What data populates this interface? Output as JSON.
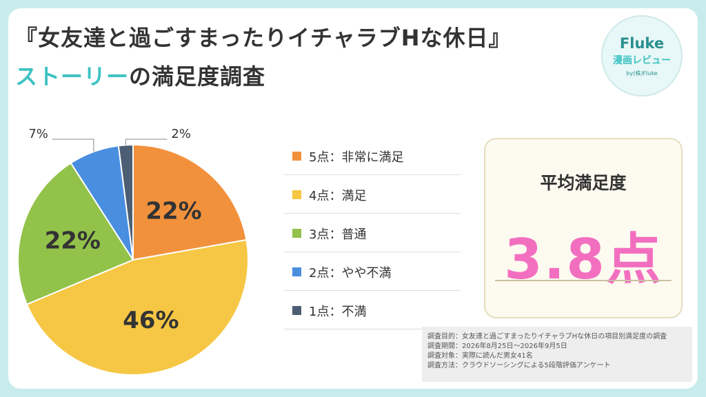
{
  "title": {
    "line1": "『女友達と過ごすまったりイチャラブHな休日』",
    "line2_highlight": "ストーリー",
    "line2_rest": "の満足度調査"
  },
  "logo": {
    "name": "Fluke",
    "subtitle": "漫画レビュー",
    "by": "by(株)Fluke"
  },
  "chart_data": {
    "type": "pie",
    "categories": [
      "5点：非常に満足",
      "4点：満足",
      "3点：普通",
      "2点：やや不満",
      "1点：不満"
    ],
    "values": [
      22,
      46,
      22,
      7,
      2
    ],
    "data_labels": [
      "22%",
      "46%",
      "22%",
      "7%",
      "2%"
    ],
    "colors": [
      "#f2913c",
      "#f6c744",
      "#92c24a",
      "#4a8ee0",
      "#4c5e73"
    ],
    "legend_placement": "right"
  },
  "average": {
    "title": "平均満足度",
    "value": "3.8点"
  },
  "notes": [
    "調査目的：女友達と過ごすまったりイチャラブHな休日の項目別満足度の調査",
    "調査期間：2026年8月25日～2026年9月5日",
    "調査対象：実際に読んだ男女41名",
    "調査方法：クラウドソーシングによる5段階評価アンケート"
  ]
}
